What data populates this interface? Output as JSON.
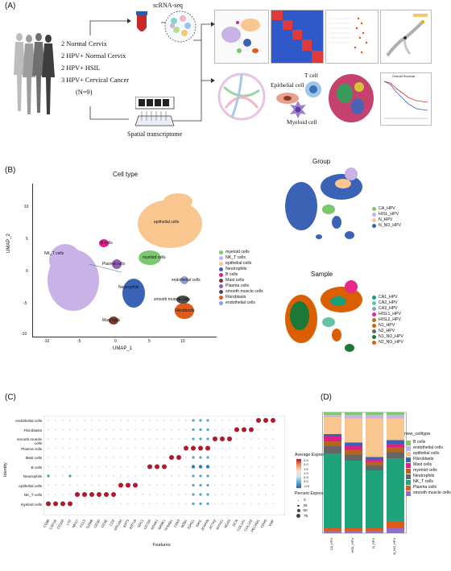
{
  "panelA": {
    "label": "(A)",
    "scrna_label": "scRNA-seq",
    "groups": [
      "2 Normal Cervix",
      "2 HPV+ Normal Cervix",
      "2 HPV+ HSIL",
      "3 HPV+ Cervical Cancer"
    ],
    "n_label": "(N=9)",
    "spatial_label": "Spatial transcriptome",
    "cell_labels": {
      "epithelial": "Epithelial cell",
      "tcell": "T cell",
      "myeloid": "Myeloid cell"
    },
    "survival_title": "Overall Survival"
  },
  "panelB": {
    "label": "(B)",
    "celltype_title": "Cell type",
    "xlabel": "UMAP_1",
    "ylabel": "UMAP_2",
    "xticks": [
      "-10",
      "-5",
      "0",
      "5",
      "10"
    ],
    "yticks": [
      "10",
      "5",
      "0",
      "-5",
      "-10"
    ],
    "cluster_labels": {
      "epithelial": "epithelial cells",
      "nk": "NK_T cells",
      "bcells": "B cells",
      "plasma": "Plasma cells",
      "myeloid": "myeloid cells",
      "neutro": "Neutrophils",
      "endo": "endothelial cells",
      "smooth": "smooth muscle cells",
      "fibro": "Fibroblasts",
      "mast": "Mast cells"
    },
    "legend": [
      {
        "name": "myeloid cells",
        "color": "#7bc96f"
      },
      {
        "name": "NK_T cells",
        "color": "#c9b3e6"
      },
      {
        "name": "epithelial cells",
        "color": "#f9c68f"
      },
      {
        "name": "Neutrophils",
        "color": "#3a63b5"
      },
      {
        "name": "B cells",
        "color": "#e0208a"
      },
      {
        "name": "Mast cells",
        "color": "#7a3a2a"
      },
      {
        "name": "Plasma cells",
        "color": "#8e5fb5"
      },
      {
        "name": "smooth muscle cells",
        "color": "#4d4d4d"
      },
      {
        "name": "Fibroblasts",
        "color": "#e05a1a"
      },
      {
        "name": "endothelial cells",
        "color": "#8f9fd6"
      }
    ],
    "group_title": "Group",
    "group_legend": [
      {
        "name": "CA_HPV",
        "color": "#7bc96f"
      },
      {
        "name": "HISL_HPV",
        "color": "#c9b3e6"
      },
      {
        "name": "N_HPV",
        "color": "#f9c68f"
      },
      {
        "name": "N_NO_HPV",
        "color": "#3a63b5"
      }
    ],
    "sample_title": "Sample",
    "sample_legend": [
      {
        "name": "CA1_HPV",
        "color": "#1b9e77"
      },
      {
        "name": "CA2_HPV",
        "color": "#66c2a5"
      },
      {
        "name": "CA3_HPV",
        "color": "#8da0cb"
      },
      {
        "name": "HISL1_HPV",
        "color": "#e7298a"
      },
      {
        "name": "HISL2_HPV",
        "color": "#a6761d"
      },
      {
        "name": "N1_HPV",
        "color": "#d95f02"
      },
      {
        "name": "N2_HPV",
        "color": "#666666"
      },
      {
        "name": "N1_NO_HPV",
        "color": "#1b7837"
      },
      {
        "name": "N2_NO_HPV",
        "color": "#d95f02"
      }
    ]
  },
  "panelC": {
    "label": "(C)",
    "ylabel": "Identity",
    "xlabel": "Features",
    "identities": [
      "endothelial cells",
      "Fibroblasts",
      "smooth muscle cells",
      "Plasma cells",
      "Mast cells",
      "B cells",
      "Neutrophils",
      "epithelial cells",
      "NK_T cells",
      "myeloid cells"
    ],
    "features": [
      "CD68",
      "CSF1R",
      "CD163",
      "LYZ",
      "NKG7",
      "CCL5",
      "GZMB",
      "CD3D",
      "CD3E",
      "CD2",
      "EPCAM",
      "KRT5",
      "KRT18",
      "SDC1",
      "CD79A",
      "MS4A1",
      "BANK1",
      "TPSAB1",
      "CPA3",
      "MZB1",
      "IGHG1",
      "IGKC",
      "JCHAIN",
      "ACTA2",
      "MYH11",
      "RGS5",
      "DCN",
      "COL1A1",
      "COL1A2",
      "PECAM1",
      "CDH5",
      "VWF"
    ],
    "legend_expr_title": "Average Expression",
    "expr_ticks": [
      "2.5",
      "2.0",
      "1.5",
      "1.0",
      "0.5",
      "0.0",
      "-0.5"
    ],
    "legend_pct_title": "Percent Expressed",
    "pct_ticks": [
      "0",
      "25",
      "50",
      "75"
    ],
    "chart_data": {
      "type": "dot",
      "note": "dot plot of marker genes per cell type"
    }
  },
  "panelD": {
    "label": "(D)",
    "legend_title": "new_celltype",
    "samples": [
      "CA_HPV",
      "HISL_HPV",
      "N_HPV",
      "N_NO_HPV"
    ],
    "legend": [
      {
        "name": "B cells",
        "color": "#7bc96f"
      },
      {
        "name": "endothelial cells",
        "color": "#c9b3e6"
      },
      {
        "name": "epithelial cells",
        "color": "#f9c68f"
      },
      {
        "name": "Fibroblasts",
        "color": "#3a63b5"
      },
      {
        "name": "Mast cells",
        "color": "#e0208a"
      },
      {
        "name": "myeloid cells",
        "color": "#b5651d"
      },
      {
        "name": "Neutrophils",
        "color": "#666666"
      },
      {
        "name": "NK_T cells",
        "color": "#1fa37a"
      },
      {
        "name": "Plasma cells",
        "color": "#e05a1a"
      },
      {
        "name": "smooth muscle cells",
        "color": "#8f6fc9"
      }
    ],
    "chart_data": {
      "type": "bar",
      "stacked": true,
      "categories": [
        "CA_HPV",
        "HISL_HPV",
        "N_HPV",
        "N_NO_HPV"
      ],
      "series": [
        {
          "name": "B cells",
          "values": [
            0.02,
            0.02,
            0.02,
            0.02
          ]
        },
        {
          "name": "endothelial cells",
          "values": [
            0.02,
            0.03,
            0.03,
            0.03
          ]
        },
        {
          "name": "epithelial cells",
          "values": [
            0.14,
            0.2,
            0.32,
            0.18
          ]
        },
        {
          "name": "Fibroblasts",
          "values": [
            0.02,
            0.03,
            0.02,
            0.03
          ]
        },
        {
          "name": "Mast cells",
          "values": [
            0.04,
            0.03,
            0.02,
            0.03
          ]
        },
        {
          "name": "myeloid cells",
          "values": [
            0.04,
            0.04,
            0.03,
            0.04
          ]
        },
        {
          "name": "Neutrophils",
          "values": [
            0.06,
            0.05,
            0.04,
            0.05
          ]
        },
        {
          "name": "NK_T cells",
          "values": [
            0.62,
            0.56,
            0.48,
            0.52
          ]
        },
        {
          "name": "Plasma cells",
          "values": [
            0.02,
            0.02,
            0.02,
            0.06
          ]
        },
        {
          "name": "smooth muscle cells",
          "values": [
            0.02,
            0.02,
            0.02,
            0.04
          ]
        }
      ],
      "ylim": [
        0,
        1
      ]
    }
  }
}
